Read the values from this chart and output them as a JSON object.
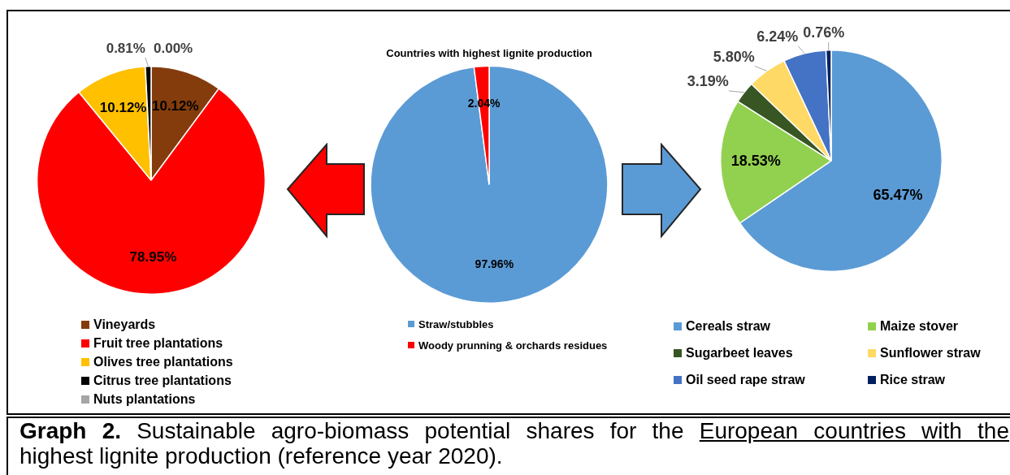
{
  "chart_data": [
    {
      "type": "pie",
      "categories": [
        "Vineyards",
        "Fruit tree plantations",
        "Olives tree plantations",
        "Citrus tree plantations",
        "Nuts plantations"
      ],
      "values": [
        10.12,
        78.95,
        10.12,
        0.81,
        0
      ],
      "colors": [
        "#843c0c",
        "#ff0000",
        "#ffc000",
        "#000000",
        "#a5a5a5"
      ],
      "value_labels": [
        "10.12%",
        "78.95%",
        "10.12%",
        "0.81%",
        "0.00%"
      ],
      "legend": "bottom"
    },
    {
      "type": "pie",
      "title": "Countries with highest lignite production",
      "categories": [
        "Straw/stubbles",
        "Woody prunning & orchards residues"
      ],
      "values": [
        97.96,
        2.04
      ],
      "colors": [
        "#5b9bd5",
        "#ff0000"
      ],
      "value_labels": [
        "97.96%",
        "2.04%"
      ],
      "legend": "bottom"
    },
    {
      "type": "pie",
      "categories": [
        "Cereals straw",
        "Maize stover",
        "Sugarbeet leaves",
        "Sunflower straw",
        "Oil seed rape straw",
        "Rice straw"
      ],
      "values": [
        65.47,
        18.53,
        3.19,
        5.8,
        6.24,
        0.76
      ],
      "colors": [
        "#5b9bd5",
        "#92d050",
        "#375623",
        "#ffd966",
        "#4472c4",
        "#002060"
      ],
      "value_labels": [
        "65.47%",
        "18.53%",
        "3.19%",
        "5.80%",
        "6.24%",
        "0.76%"
      ],
      "legend": "bottom"
    },
    {
      "type": "other",
      "title": "Graph 2.",
      "annotations": [
        "Sustainable agro-biomass potential shares for the",
        "European countries with the",
        "highest lignite production (reference year 2020)."
      ]
    }
  ]
}
